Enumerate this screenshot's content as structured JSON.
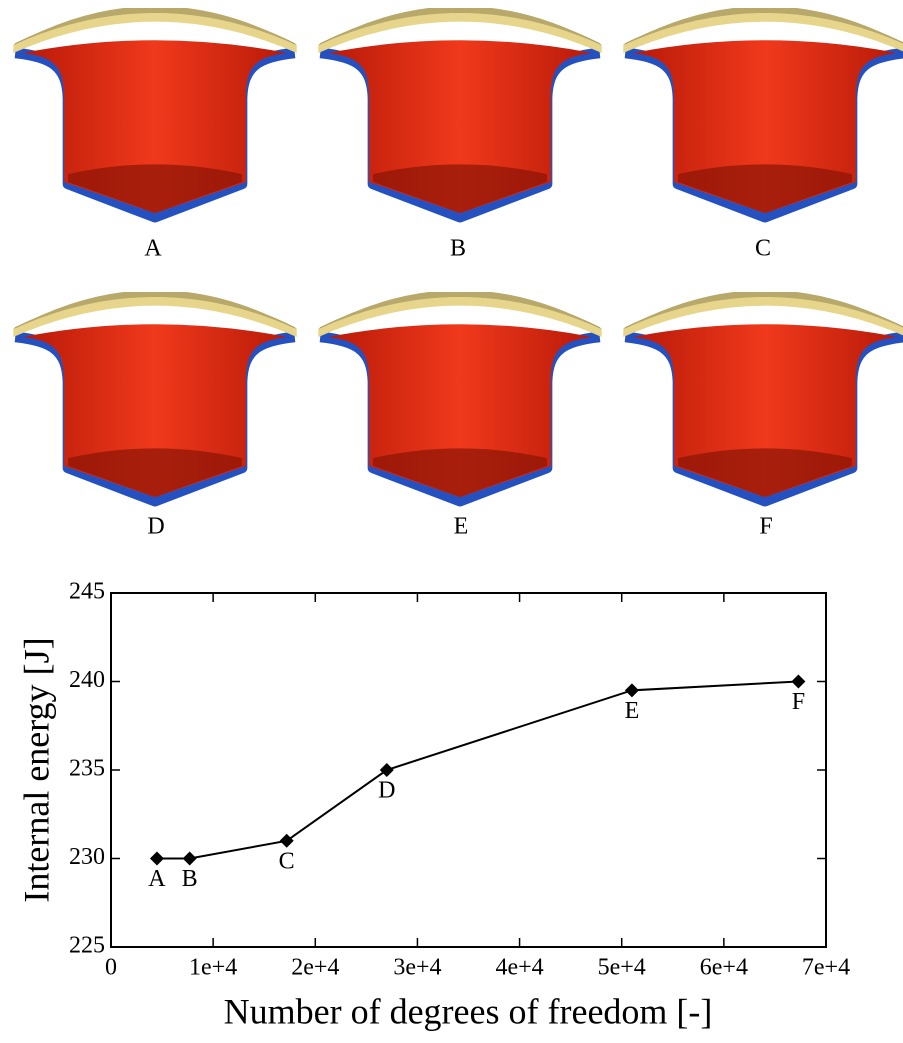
{
  "panel_labels": [
    "A",
    "B",
    "C",
    "D",
    "E",
    "F"
  ],
  "chart_data": {
    "type": "line",
    "x_label": "Number of degrees of freedom [-]",
    "y_label": "Internal energy [J]",
    "x": [
      4500,
      7700,
      17200,
      27000,
      51000,
      67300
    ],
    "values": [
      230,
      230,
      231,
      235,
      239.5,
      240
    ],
    "point_labels": [
      "A",
      "B",
      "C",
      "D",
      "E",
      "F"
    ],
    "color": "#000000",
    "xlim": [
      0,
      70000
    ],
    "xticks": [
      0,
      {
        "value": 10000,
        "label": "1e+4"
      },
      {
        "value": 20000,
        "label": "2e+4"
      },
      {
        "value": 30000,
        "label": "3e+4"
      },
      {
        "value": 40000,
        "label": "4e+4"
      },
      {
        "value": 50000,
        "label": "5e+4"
      },
      {
        "value": 60000,
        "label": "6e+4"
      },
      {
        "value": 70000,
        "label": "7e+4"
      }
    ],
    "ylim": [
      225,
      245
    ],
    "yticks": [
      225,
      230,
      235,
      240,
      245
    ]
  }
}
